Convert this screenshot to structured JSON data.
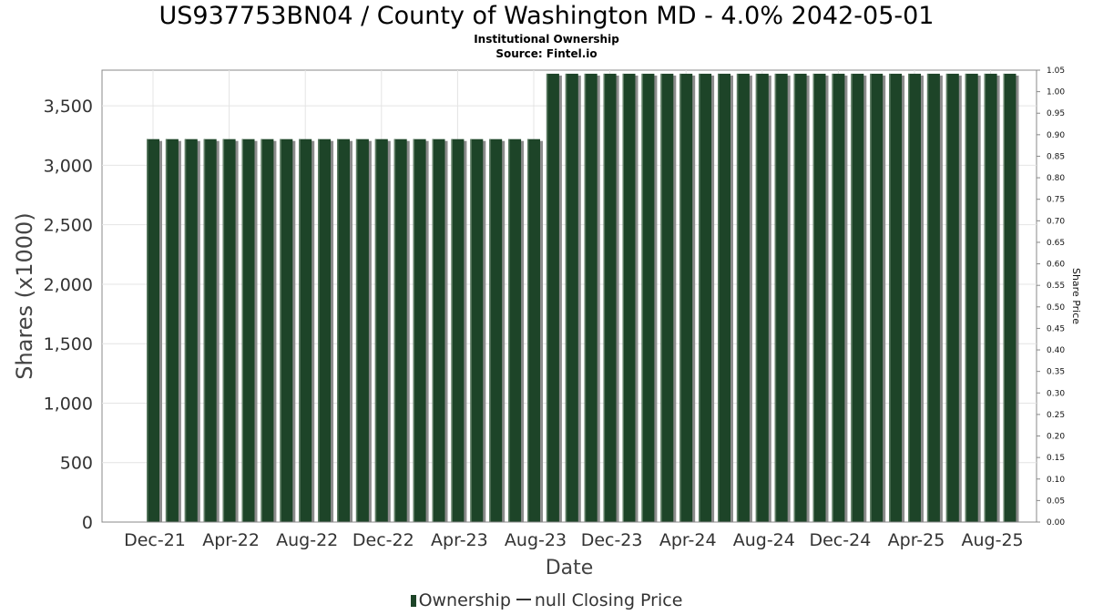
{
  "chart_data": {
    "type": "bar",
    "title": "US937753BN04 / County of Washington MD - 4.0% 2042-05-01",
    "subtitle": "Institutional Ownership",
    "source": "Source: Fintel.io",
    "xlabel": "Date",
    "ylabel": "Shares (x1000)",
    "y2label": "Share Price",
    "ylim": [
      0,
      3800
    ],
    "y2lim": [
      0.0,
      1.05
    ],
    "yticks": [
      0,
      500,
      1000,
      1500,
      2000,
      2500,
      3000,
      3500
    ],
    "ytick_labels": [
      "0",
      "500",
      "1,000",
      "1,500",
      "2,000",
      "2,500",
      "3,000",
      "3,500"
    ],
    "y2tick_labels": [
      "0.00",
      "0.05",
      "0.10",
      "0.15",
      "0.20",
      "0.25",
      "0.30",
      "0.35",
      "0.40",
      "0.45",
      "0.50",
      "0.55",
      "0.60",
      "0.65",
      "0.70",
      "0.75",
      "0.80",
      "0.85",
      "0.90",
      "0.95",
      "1.00",
      "1.05"
    ],
    "xtick_labels": [
      "Dec-21",
      "Apr-22",
      "Aug-22",
      "Dec-22",
      "Apr-23",
      "Aug-23",
      "Dec-23",
      "Apr-24",
      "Aug-24",
      "Dec-24",
      "Apr-25",
      "Aug-25"
    ],
    "grid": true,
    "legend_position": "bottom",
    "series": [
      {
        "name": "Ownership",
        "color": "#1d4428",
        "values": [
          3220,
          3220,
          3220,
          3220,
          3220,
          3220,
          3220,
          3220,
          3220,
          3220,
          3220,
          3220,
          3220,
          3220,
          3220,
          3220,
          3220,
          3220,
          3220,
          3220,
          3220,
          3770,
          3770,
          3770,
          3770,
          3770,
          3770,
          3770,
          3770,
          3770,
          3770,
          3770,
          3770,
          3770,
          3770,
          3770,
          3770,
          3770,
          3770,
          3770,
          3770,
          3770,
          3770,
          3770,
          3770,
          3770
        ]
      }
    ],
    "legend": {
      "ownership": "Ownership",
      "price": "null Closing Price"
    }
  }
}
